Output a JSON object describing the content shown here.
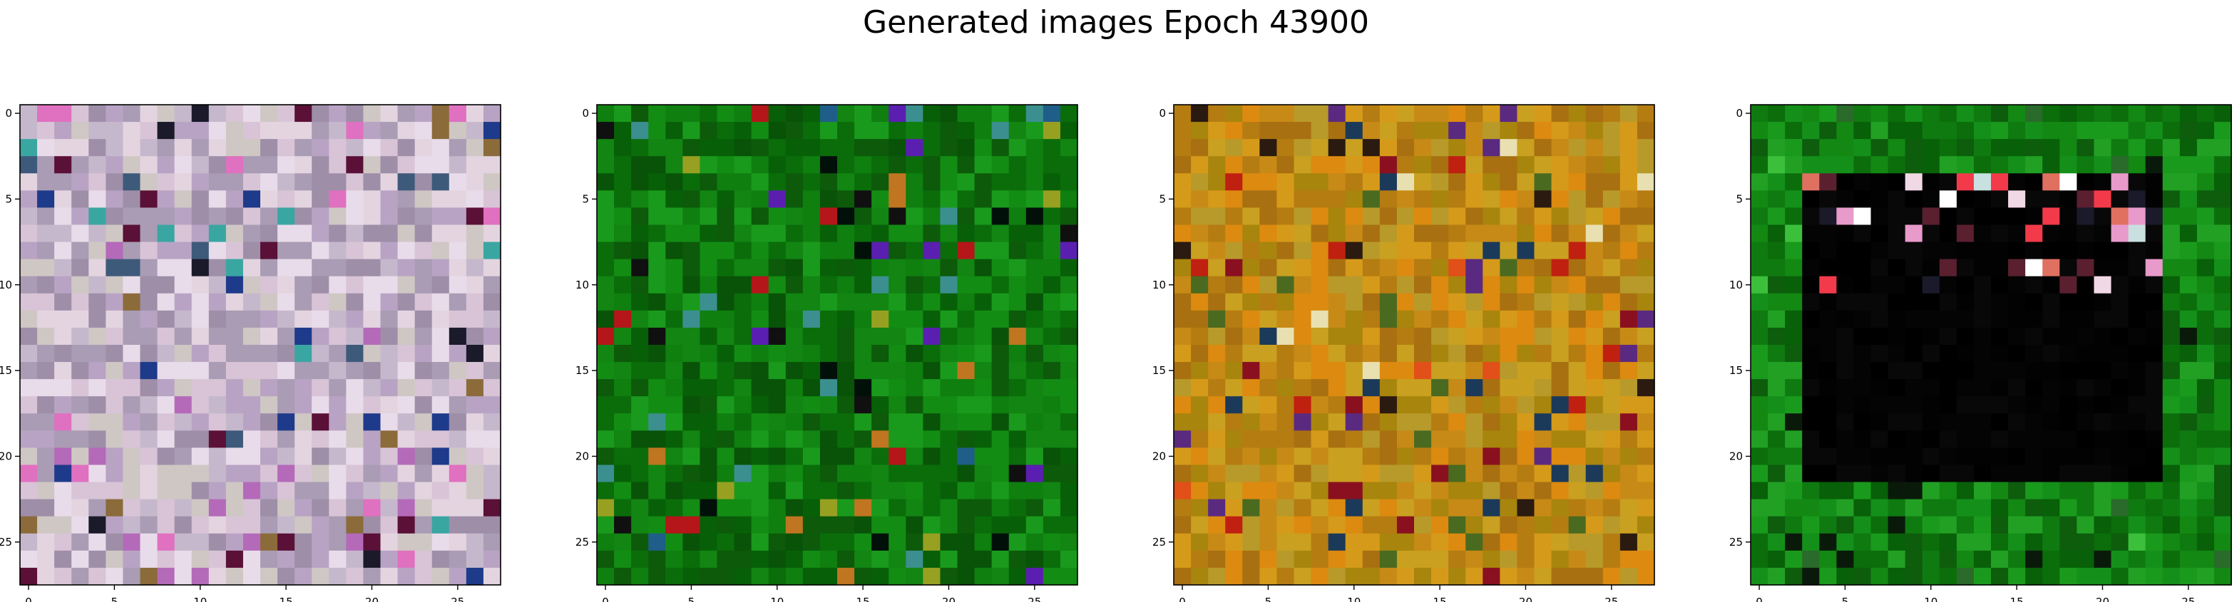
{
  "figure": {
    "title": "Generated images Epoch 43900"
  },
  "chart_data": [
    {
      "type": "heatmap",
      "description_of_content": "image",
      "grid_size": [
        28,
        28
      ],
      "palette": [
        "#d8c4d6",
        "#c6b8cc",
        "#b9a3c4",
        "#e4d4e0",
        "#a99cb4",
        "#cfc7c4",
        "#9e8ea8",
        "#e9dcea"
      ],
      "accent_colors": [
        "#1e3a8a",
        "#5a1037",
        "#1a1a2a",
        "#b46ab9",
        "#3aa6a2",
        "#e070c0",
        "#8b6b3a",
        "#3e5a7a"
      ],
      "seed": 11,
      "accent_rate": 0.12,
      "xticks": [
        0,
        5,
        10,
        15,
        20,
        25
      ],
      "yticks": [
        0,
        5,
        10,
        15,
        20,
        25
      ]
    },
    {
      "type": "heatmap",
      "description_of_content": "image",
      "grid_size": [
        28,
        28
      ],
      "palette": [
        "#0a6d0a",
        "#0f7f10",
        "#138c14",
        "#076007",
        "#1a9a1c",
        "#0c5a0a",
        "#128512",
        "#085308"
      ],
      "accent_colors": [
        "#02100a",
        "#c07520",
        "#1f5e88",
        "#b5161a",
        "#3b8f8f",
        "#5a1fb0",
        "#98a022",
        "#101010"
      ],
      "seed": 23,
      "accent_rate": 0.08,
      "xticks": [
        0,
        5,
        10,
        15,
        20,
        25
      ],
      "yticks": [
        0,
        5,
        10,
        15,
        20,
        25
      ]
    },
    {
      "type": "heatmap",
      "description_of_content": "image",
      "grid_size": [
        28,
        28
      ],
      "palette": [
        "#c78a16",
        "#d69a1a",
        "#b57c12",
        "#c9a020",
        "#a8850c",
        "#dc8a10",
        "#b89a2a",
        "#a87010"
      ],
      "accent_colors": [
        "#2a1a10",
        "#c02010",
        "#5a2a80",
        "#1b3a5a",
        "#e8e0b0",
        "#4a6a20",
        "#8a1020",
        "#e05018"
      ],
      "seed": 37,
      "accent_rate": 0.1,
      "xticks": [
        0,
        5,
        10,
        15,
        20,
        25
      ],
      "yticks": [
        0,
        5,
        10,
        15,
        20,
        25
      ]
    },
    {
      "type": "heatmap",
      "description_of_content": "image",
      "grid_size": [
        28,
        28
      ],
      "palette": [
        "#0b6e0b",
        "#138813",
        "#0f7a10",
        "#1a9a1c",
        "#086008",
        "#14901a",
        "#0d5d0d",
        "#22a024"
      ],
      "accent_colors": [
        "#0a1a0a",
        "#2a6a2a",
        "#3cc03c"
      ],
      "inner_region": {
        "rows": [
          4,
          21
        ],
        "cols": [
          3,
          23
        ],
        "colors": [
          "#000000",
          "#040404",
          "#080808",
          "#020202"
        ]
      },
      "highlight_colors": [
        "#f0d8e4",
        "#e89aca",
        "#f23a4a",
        "#ffffff",
        "#5a2030",
        "#1a1a2a",
        "#e07060",
        "#c8e0e0"
      ],
      "highlight_rows": [
        4,
        5,
        6,
        7,
        9,
        10
      ],
      "seed": 53,
      "accent_rate": 0.06,
      "xticks": [
        0,
        5,
        10,
        15,
        20,
        25
      ],
      "yticks": [
        0,
        5,
        10,
        15,
        20,
        25
      ]
    }
  ]
}
